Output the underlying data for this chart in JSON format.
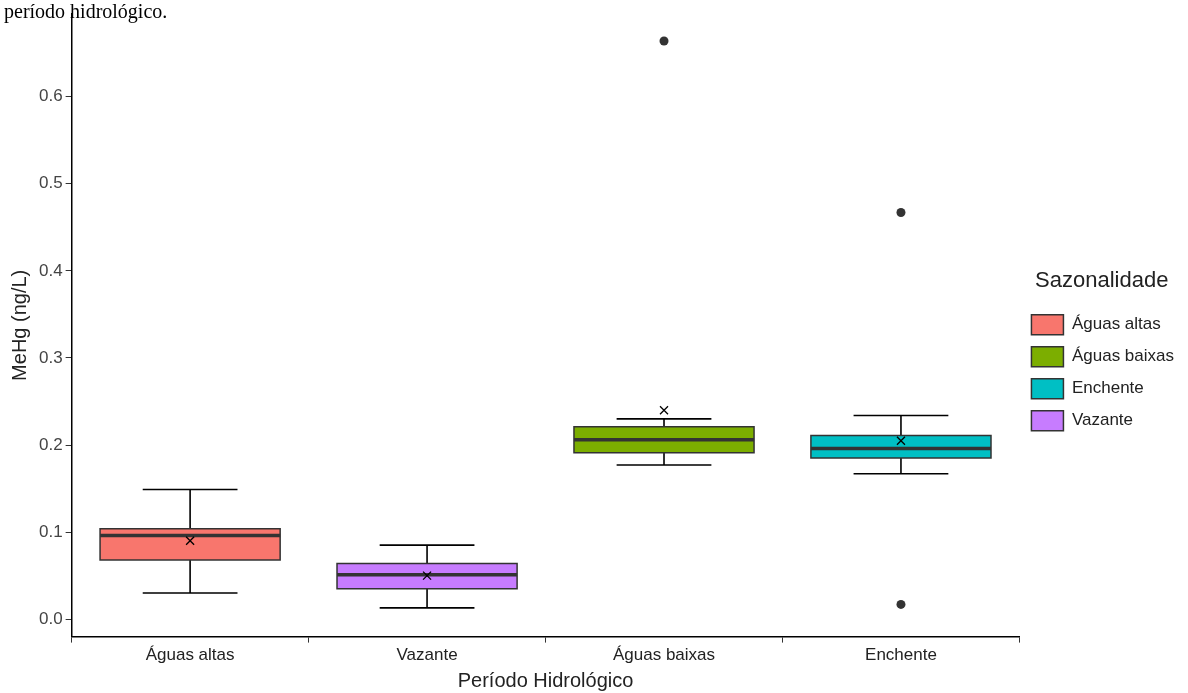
{
  "chart_data": {
    "type": "box",
    "xlabel": "Período Hidrológico",
    "ylabel": "MeHg (ng/L)",
    "legend_title": "Sazonalidade",
    "legend": "right",
    "grid": false,
    "annotations": [
      "período hidrológico."
    ],
    "categories": [
      "Águas altas",
      "Vazante",
      "Águas baixas",
      "Enchente"
    ],
    "ylim": [
      -0.02,
      0.695
    ],
    "yticks": [
      {
        "value": 0,
        "label": "0.0"
      },
      {
        "value": 0.1,
        "label": "0.1"
      },
      {
        "value": 0.2,
        "label": "0.2"
      },
      {
        "value": 0.3,
        "label": "0.3"
      },
      {
        "value": 0.4,
        "label": "0.4"
      },
      {
        "value": 0.5,
        "label": "0.5"
      },
      {
        "value": 0.6,
        "label": "0.6"
      }
    ],
    "series": [
      {
        "name": "Águas altas",
        "color": "#f8766d",
        "boxes": [
          {
            "low": 0.03,
            "q1": 0.068,
            "median": 0.096,
            "q3": 0.104,
            "high": 0.149,
            "mean": 0.09
          },
          null,
          null,
          null
        ]
      },
      {
        "name": "Águas baixas",
        "color": "#7cae00",
        "boxes": [
          null,
          null,
          {
            "low": 0.177,
            "q1": 0.191,
            "median": 0.206,
            "q3": 0.221,
            "high": 0.23,
            "mean": 0.24,
            "outliers": [
              0.664
            ]
          },
          null
        ]
      },
      {
        "name": "Enchente",
        "color": "#00bfc4",
        "boxes": [
          null,
          null,
          null,
          {
            "low": 0.167,
            "q1": 0.185,
            "median": 0.196,
            "q3": 0.211,
            "high": 0.234,
            "mean": 0.205,
            "outliers": [
              0.467,
              0.017
            ]
          }
        ]
      },
      {
        "name": "Vazante",
        "color": "#c77cff",
        "boxes": [
          null,
          {
            "low": 0.013,
            "q1": 0.035,
            "median": 0.051,
            "q3": 0.064,
            "high": 0.085,
            "mean": 0.05
          },
          null,
          null
        ]
      }
    ]
  }
}
